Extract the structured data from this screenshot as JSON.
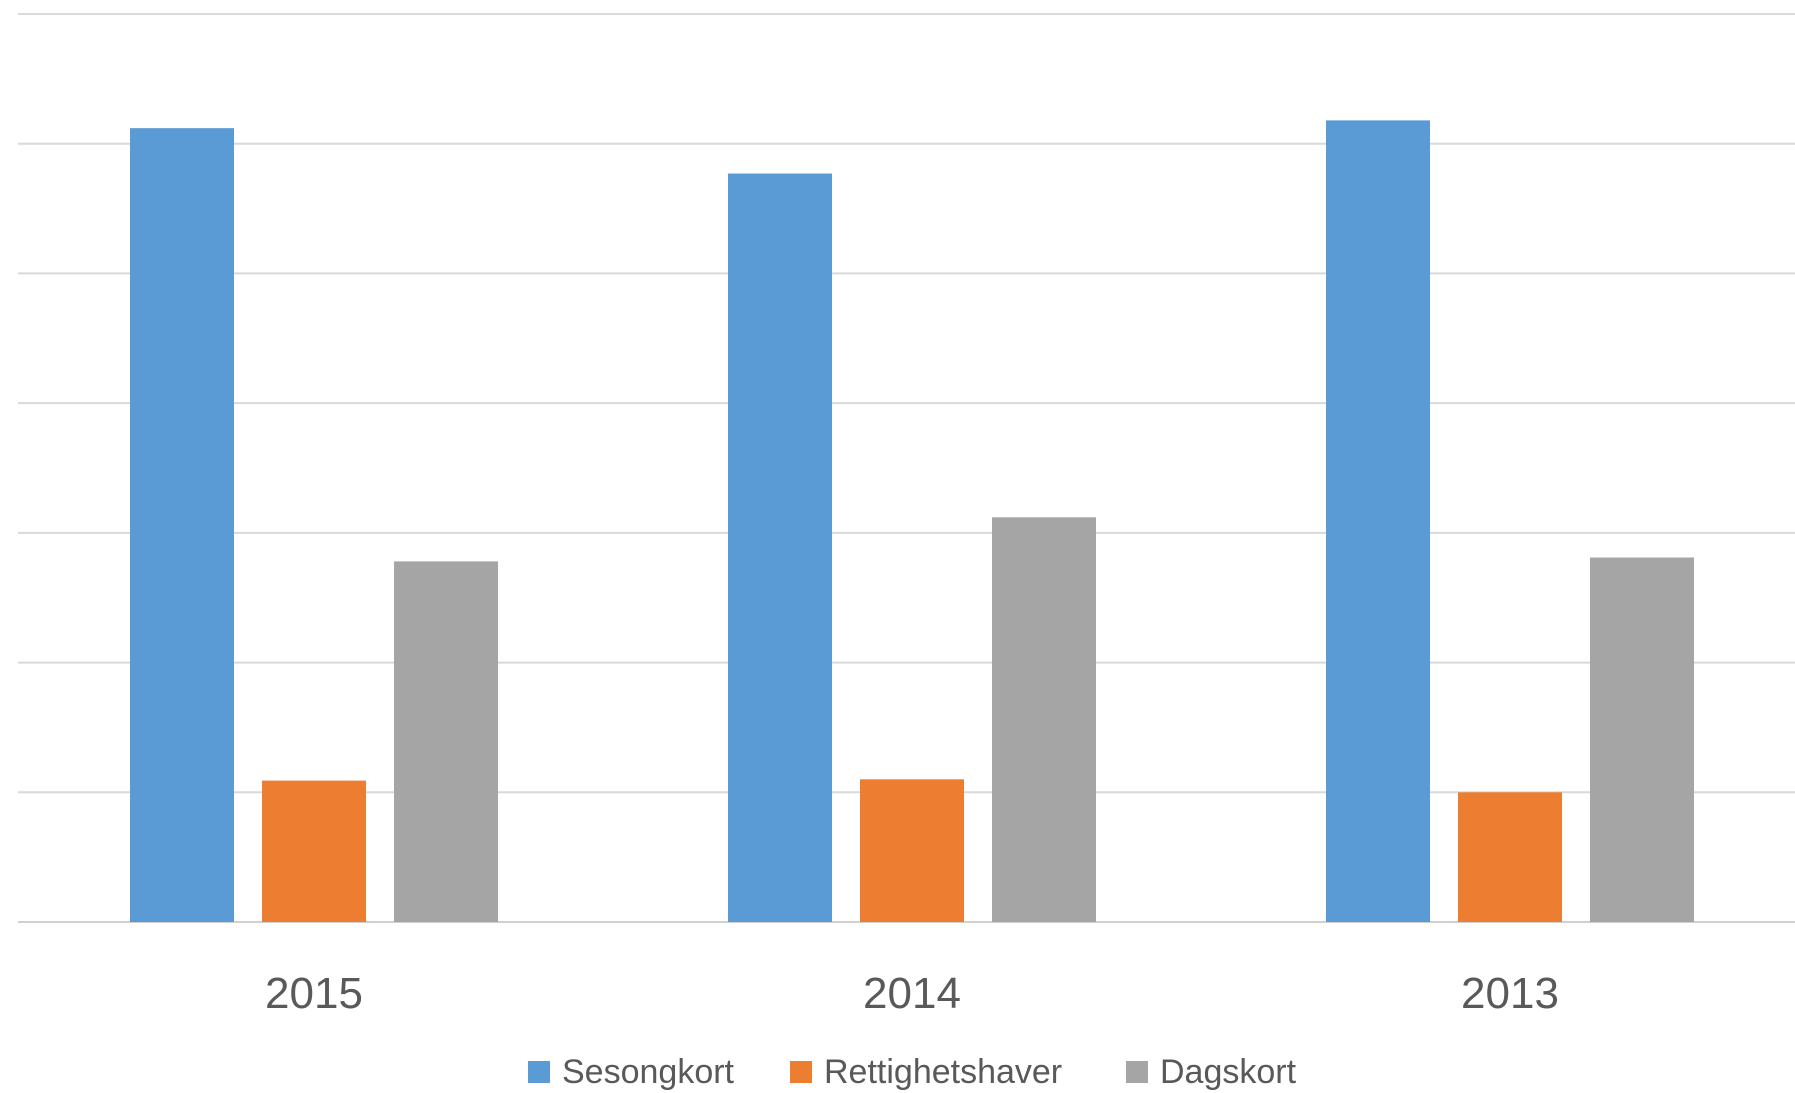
{
  "chart_data": {
    "type": "bar",
    "categories": [
      "2015",
      "2014",
      "2013"
    ],
    "series": [
      {
        "name": "Sesongkort",
        "color": "#5B9BD5",
        "values": [
          6.12,
          5.77,
          6.18
        ]
      },
      {
        "name": "Rettighetshaver",
        "color": "#ED7D31",
        "values": [
          1.09,
          1.1,
          1.0
        ]
      },
      {
        "name": "Dagskort",
        "color": "#A5A5A5",
        "values": [
          2.78,
          3.12,
          2.81
        ]
      }
    ],
    "title": "",
    "xlabel": "",
    "ylabel": "",
    "ylim": [
      0,
      7
    ],
    "gridlines": 7,
    "grid": true,
    "legend_position": "bottom"
  }
}
